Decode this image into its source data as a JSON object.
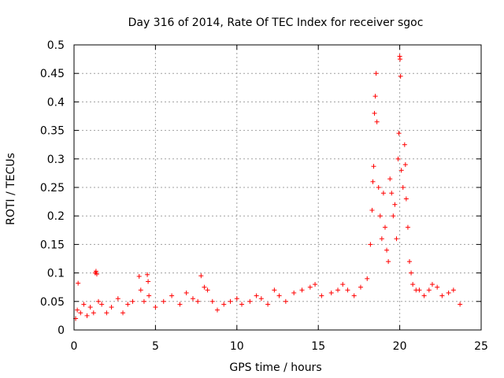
{
  "chart_data": {
    "type": "scatter",
    "title": "Day 316 of 2014, Rate Of TEC Index for receiver sgoc",
    "xlabel": "GPS time / hours",
    "ylabel": "ROTI / TECUs",
    "xlim": [
      0,
      25
    ],
    "ylim": [
      0,
      0.5
    ],
    "x_ticks": [
      "0",
      "5",
      "10",
      "15",
      "20",
      "25"
    ],
    "y_ticks": [
      "0",
      "0.05",
      "0.1",
      "0.15",
      "0.2",
      "0.25",
      "0.3",
      "0.35",
      "0.4",
      "0.45",
      "0.5"
    ],
    "grid": true,
    "marker": "+",
    "series_color": "#ff0000",
    "series": [
      {
        "name": "ROTI",
        "points": [
          [
            0.1,
            0.02
          ],
          [
            0.2,
            0.035
          ],
          [
            0.25,
            0.082
          ],
          [
            0.4,
            0.03
          ],
          [
            0.6,
            0.045
          ],
          [
            0.8,
            0.025
          ],
          [
            1.0,
            0.04
          ],
          [
            1.2,
            0.03
          ],
          [
            1.3,
            0.1
          ],
          [
            1.35,
            0.103
          ],
          [
            1.4,
            0.098
          ],
          [
            1.5,
            0.05
          ],
          [
            1.7,
            0.045
          ],
          [
            2.0,
            0.03
          ],
          [
            2.3,
            0.04
          ],
          [
            2.7,
            0.055
          ],
          [
            3.0,
            0.03
          ],
          [
            3.3,
            0.045
          ],
          [
            3.6,
            0.05
          ],
          [
            4.0,
            0.094
          ],
          [
            4.1,
            0.07
          ],
          [
            4.3,
            0.05
          ],
          [
            4.5,
            0.097
          ],
          [
            4.55,
            0.085
          ],
          [
            4.6,
            0.06
          ],
          [
            5.0,
            0.04
          ],
          [
            5.5,
            0.05
          ],
          [
            6.0,
            0.06
          ],
          [
            6.5,
            0.045
          ],
          [
            6.9,
            0.065
          ],
          [
            7.3,
            0.055
          ],
          [
            7.6,
            0.05
          ],
          [
            7.8,
            0.095
          ],
          [
            8.0,
            0.075
          ],
          [
            8.2,
            0.07
          ],
          [
            8.5,
            0.05
          ],
          [
            8.8,
            0.035
          ],
          [
            9.2,
            0.045
          ],
          [
            9.6,
            0.05
          ],
          [
            10.0,
            0.055
          ],
          [
            10.3,
            0.045
          ],
          [
            10.8,
            0.05
          ],
          [
            11.2,
            0.06
          ],
          [
            11.5,
            0.055
          ],
          [
            11.9,
            0.045
          ],
          [
            12.3,
            0.07
          ],
          [
            12.6,
            0.06
          ],
          [
            13.0,
            0.05
          ],
          [
            13.5,
            0.065
          ],
          [
            14.0,
            0.07
          ],
          [
            14.5,
            0.075
          ],
          [
            14.8,
            0.08
          ],
          [
            15.2,
            0.06
          ],
          [
            15.8,
            0.065
          ],
          [
            16.2,
            0.07
          ],
          [
            16.5,
            0.08
          ],
          [
            16.8,
            0.07
          ],
          [
            17.2,
            0.06
          ],
          [
            17.6,
            0.075
          ],
          [
            18.0,
            0.09
          ],
          [
            18.2,
            0.15
          ],
          [
            18.3,
            0.21
          ],
          [
            18.35,
            0.26
          ],
          [
            18.4,
            0.287
          ],
          [
            18.45,
            0.38
          ],
          [
            18.5,
            0.41
          ],
          [
            18.55,
            0.45
          ],
          [
            18.6,
            0.365
          ],
          [
            18.7,
            0.25
          ],
          [
            18.8,
            0.2
          ],
          [
            18.9,
            0.16
          ],
          [
            19.0,
            0.24
          ],
          [
            19.1,
            0.18
          ],
          [
            19.2,
            0.14
          ],
          [
            19.3,
            0.12
          ],
          [
            19.4,
            0.265
          ],
          [
            19.5,
            0.24
          ],
          [
            19.6,
            0.2
          ],
          [
            19.7,
            0.22
          ],
          [
            19.8,
            0.16
          ],
          [
            19.9,
            0.3
          ],
          [
            19.95,
            0.345
          ],
          [
            20.0,
            0.48
          ],
          [
            20.02,
            0.475
          ],
          [
            20.05,
            0.445
          ],
          [
            20.1,
            0.28
          ],
          [
            20.2,
            0.25
          ],
          [
            20.3,
            0.325
          ],
          [
            20.35,
            0.29
          ],
          [
            20.4,
            0.23
          ],
          [
            20.5,
            0.18
          ],
          [
            20.6,
            0.12
          ],
          [
            20.7,
            0.1
          ],
          [
            20.8,
            0.08
          ],
          [
            21.0,
            0.07
          ],
          [
            21.2,
            0.07
          ],
          [
            21.5,
            0.06
          ],
          [
            21.8,
            0.07
          ],
          [
            22.0,
            0.08
          ],
          [
            22.3,
            0.075
          ],
          [
            22.6,
            0.06
          ],
          [
            23.0,
            0.065
          ],
          [
            23.3,
            0.07
          ],
          [
            23.7,
            0.045
          ]
        ]
      }
    ]
  }
}
